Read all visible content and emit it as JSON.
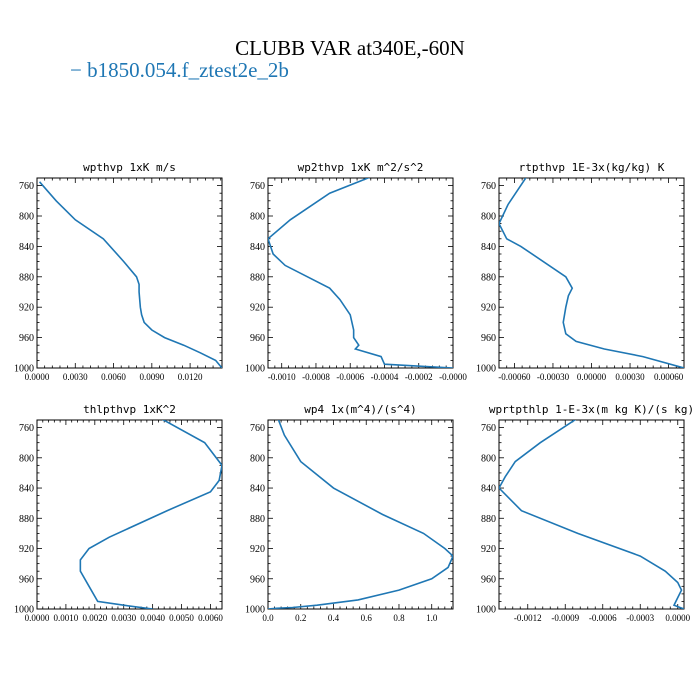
{
  "title": "CLUBB VAR at340E,-60N",
  "legend": {
    "label": "− b1850.054.f_ztest2e_2b",
    "color": "#1f77b4"
  },
  "chart_data": [
    {
      "type": "line",
      "title": "wpthvp  1xK m/s",
      "ylim": [
        1000,
        750
      ],
      "inverted_y": true,
      "yticks": [
        "760",
        "800",
        "840",
        "880",
        "920",
        "960",
        "1000"
      ],
      "xlim": [
        0.0,
        0.0145
      ],
      "xtick_values": [
        0.0,
        0.003,
        0.006,
        0.009,
        0.012
      ],
      "xtick_labels": [
        "0.0000",
        "0.0030",
        "0.0060",
        "0.0090",
        "0.0120"
      ],
      "series": [
        {
          "color": "#1f77b4",
          "x": [
            0.0002,
            0.0015,
            0.003,
            0.0052,
            0.0068,
            0.0078,
            0.008,
            0.008,
            0.0081,
            0.0082,
            0.0084,
            0.009,
            0.01,
            0.0115,
            0.0128,
            0.014,
            0.0145
          ],
          "y": [
            755,
            780,
            805,
            830,
            860,
            880,
            890,
            900,
            920,
            930,
            940,
            950,
            960,
            970,
            980,
            990,
            1000
          ]
        }
      ]
    },
    {
      "type": "line",
      "title": "wp2thvp  1xK m^2/s^2",
      "ylim": [
        1000,
        750
      ],
      "inverted_y": true,
      "yticks": [
        "760",
        "800",
        "840",
        "880",
        "920",
        "960",
        "1000"
      ],
      "xlim": [
        -0.00108,
        0.0
      ],
      "xtick_values": [
        -0.001,
        -0.0008,
        -0.0006,
        -0.0004,
        -0.0002,
        -0.0
      ],
      "xtick_labels": [
        "-0.0010",
        "-0.0008",
        "-0.0006",
        "-0.0004",
        "-0.0002",
        "-0.0000"
      ],
      "series": [
        {
          "color": "#1f77b4",
          "x": [
            -0.00044,
            -0.00072,
            -0.00095,
            -0.00108,
            -0.00105,
            -0.00098,
            -0.00072,
            -0.00066,
            -0.0006,
            -0.00058,
            -0.00058,
            -0.00055,
            -0.00057,
            -0.00042,
            -0.0004,
            -0.0
          ],
          "y": [
            745,
            770,
            805,
            830,
            850,
            865,
            895,
            910,
            930,
            950,
            960,
            970,
            975,
            985,
            995,
            1000
          ]
        }
      ]
    },
    {
      "type": "line",
      "title": "rtpthvp  1E-3x(kg/kg) K",
      "ylim": [
        1000,
        750
      ],
      "inverted_y": true,
      "yticks": [
        "760",
        "800",
        "840",
        "880",
        "920",
        "960",
        "1000"
      ],
      "xlim": [
        -0.00072,
        0.00072
      ],
      "xtick_values": [
        -0.0006,
        -0.0003,
        0.0,
        0.0003,
        0.0006
      ],
      "xtick_labels": [
        "-0.00060",
        "-0.00030",
        "0.00000",
        "0.00030",
        "0.00060"
      ],
      "series": [
        {
          "color": "#1f77b4",
          "x": [
            -0.00048,
            -0.00065,
            -0.00072,
            -0.00066,
            -0.00055,
            -0.0002,
            -0.00015,
            -0.00018,
            -0.0002,
            -0.00022,
            -0.0002,
            -0.00012,
            0.0001,
            0.0004,
            0.00072
          ],
          "y": [
            742,
            785,
            810,
            830,
            840,
            880,
            895,
            905,
            920,
            940,
            955,
            965,
            975,
            985,
            1000
          ]
        }
      ]
    },
    {
      "type": "line",
      "title": "thlpthvp  1xK^2",
      "ylim": [
        1000,
        750
      ],
      "inverted_y": true,
      "yticks": [
        "760",
        "800",
        "840",
        "880",
        "920",
        "960",
        "1000"
      ],
      "xlim": [
        0.0,
        0.0064
      ],
      "xtick_values": [
        0.0,
        0.001,
        0.002,
        0.003,
        0.004,
        0.005,
        0.006
      ],
      "xtick_labels": [
        "0.0000",
        "0.0010",
        "0.0020",
        "0.0030",
        "0.0040",
        "0.0050",
        "0.0060"
      ],
      "series": [
        {
          "color": "#1f77b4",
          "x": [
            0.004,
            0.0058,
            0.0064,
            0.0063,
            0.006,
            0.0045,
            0.0025,
            0.0018,
            0.0015,
            0.0015,
            0.0018,
            0.0021,
            0.003,
            0.004
          ],
          "y": [
            742,
            780,
            810,
            830,
            845,
            870,
            905,
            920,
            935,
            950,
            970,
            990,
            995,
            1000
          ]
        }
      ]
    },
    {
      "type": "line",
      "title": "wp4  1x(m^4)/(s^4)",
      "ylim": [
        1000,
        750
      ],
      "inverted_y": true,
      "yticks": [
        "760",
        "800",
        "840",
        "880",
        "920",
        "960",
        "1000"
      ],
      "xlim": [
        0.0,
        1.13
      ],
      "xtick_values": [
        0.0,
        0.2,
        0.4,
        0.6,
        0.8,
        1.0
      ],
      "xtick_labels": [
        "0.0",
        "0.2",
        "0.4",
        "0.6",
        "0.8",
        "1.0"
      ],
      "series": [
        {
          "color": "#1f77b4",
          "x": [
            0.05,
            0.1,
            0.2,
            0.4,
            0.7,
            0.95,
            1.08,
            1.13,
            1.1,
            1.0,
            0.8,
            0.55,
            0.3,
            0.15,
            0.05,
            0.0
          ],
          "y": [
            742,
            770,
            805,
            840,
            875,
            900,
            920,
            930,
            945,
            960,
            975,
            988,
            995,
            998,
            999,
            1000
          ]
        }
      ]
    },
    {
      "type": "line",
      "title": "wprtpthlp  1-E-3x(m kg K)/(s kg)",
      "ylim": [
        1000,
        750
      ],
      "inverted_y": true,
      "yticks": [
        "760",
        "800",
        "840",
        "880",
        "920",
        "960",
        "1000"
      ],
      "xlim": [
        -0.00143,
        5e-05
      ],
      "xtick_values": [
        -0.0012,
        -0.0009,
        -0.0006,
        -0.0003,
        0.0
      ],
      "xtick_labels": [
        "-0.0012",
        "-0.0009",
        "-0.0006",
        "-0.0003",
        "0.0000"
      ],
      "series": [
        {
          "color": "#1f77b4",
          "x": [
            -0.00075,
            -0.0011,
            -0.0013,
            -0.00138,
            -0.00143,
            -0.00125,
            -0.0008,
            -0.0003,
            -0.0001,
            0.0,
            3e-05,
            0.0,
            -3e-05,
            5e-05
          ],
          "y": [
            742,
            780,
            805,
            825,
            840,
            870,
            900,
            930,
            950,
            965,
            975,
            985,
            995,
            1000
          ]
        }
      ]
    }
  ]
}
